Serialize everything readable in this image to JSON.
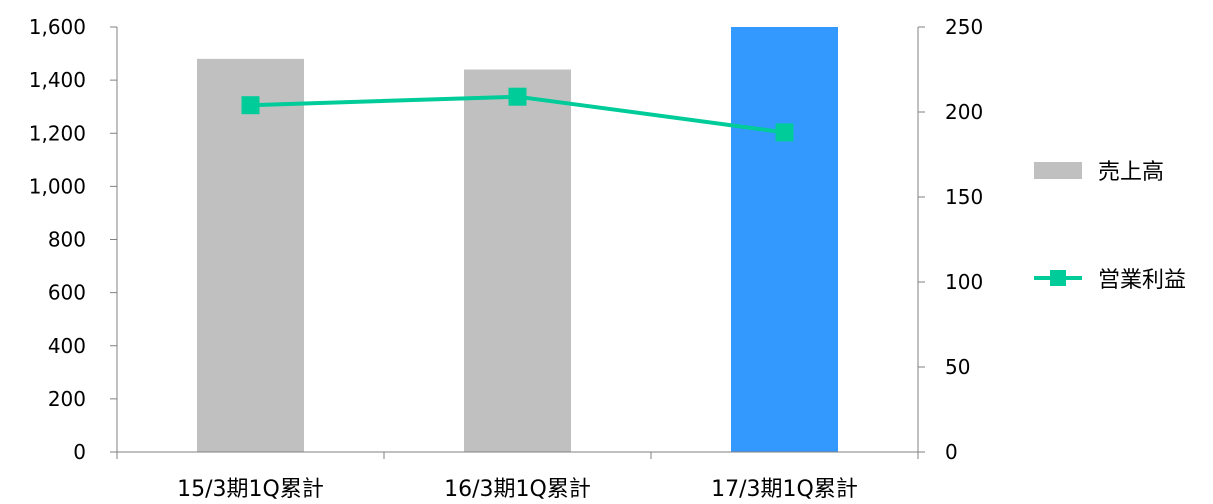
{
  "chart_data": {
    "type": "bar",
    "categories": [
      "15/3期1Q累計",
      "16/3期1Q累計",
      "17/3期1Q累計"
    ],
    "series": [
      {
        "name": "売上高",
        "kind": "bar",
        "axis": "left",
        "values": [
          1480,
          1440,
          1600
        ]
      },
      {
        "name": "営業利益",
        "kind": "line",
        "axis": "right",
        "values": [
          204,
          209,
          188
        ]
      }
    ],
    "left_axis": {
      "ylim": [
        0,
        1600
      ],
      "ticks": [
        "0",
        "200",
        "400",
        "600",
        "800",
        "1,000",
        "1,200",
        "1,400",
        "1,600"
      ]
    },
    "right_axis": {
      "ylim": [
        0,
        250
      ],
      "ticks": [
        "0",
        "50",
        "100",
        "150",
        "200",
        "250"
      ]
    },
    "grid": false,
    "legend_position": "right",
    "colors": {
      "bar": "#c0c0c0",
      "bar_highlight": "#3399ff",
      "line": "#00cc99",
      "axis": "#808080"
    }
  }
}
